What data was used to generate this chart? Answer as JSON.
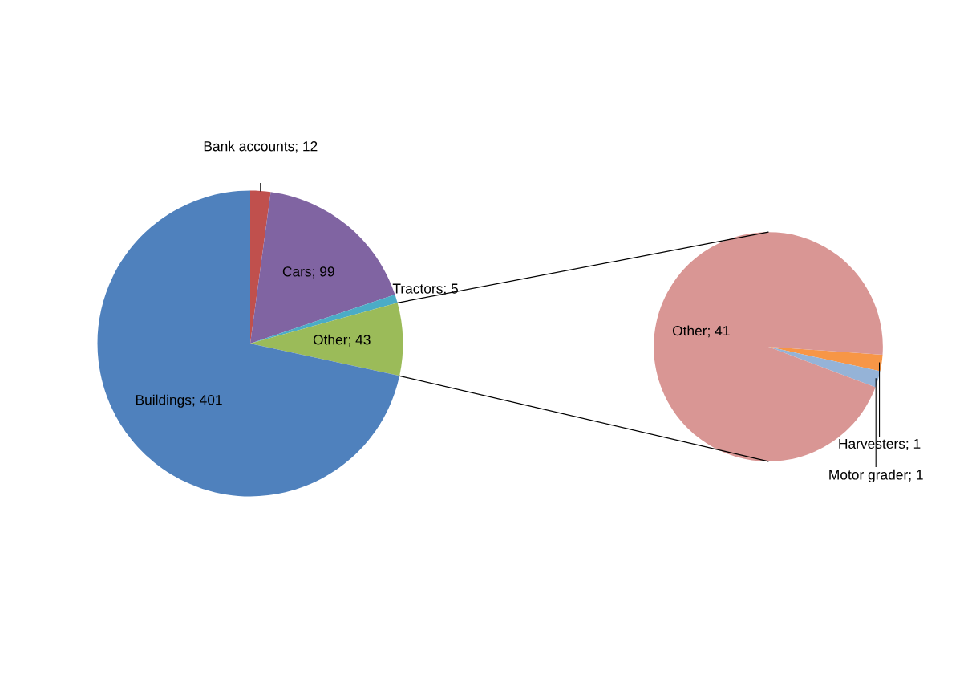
{
  "chart_data": [
    {
      "type": "pie",
      "categories": [
        "Bank accounts; 12",
        "Cars; 99",
        "Tractors; 5",
        "Other; 43",
        "Buildings; 401"
      ],
      "values": [
        12,
        99,
        5,
        43,
        401
      ],
      "colors": [
        "#c0504d",
        "#8064a2",
        "#4bacc6",
        "#9bbb59",
        "#4f81bd"
      ]
    },
    {
      "type": "pie",
      "categories": [
        "Harvesters; 1",
        "Motor grader; 1",
        "Other; 41"
      ],
      "values": [
        1,
        1,
        41
      ],
      "colors": [
        "#f79646",
        "#95b3d7",
        "#d99694"
      ]
    }
  ]
}
